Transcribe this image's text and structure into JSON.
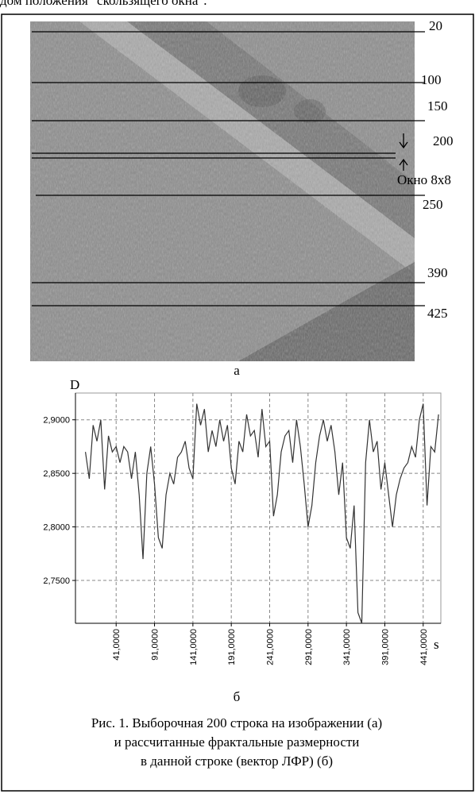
{
  "header_fragment": "дом положения \"скользящего окна\".",
  "figure_a": {
    "row_labels": [
      "20",
      "100",
      "150",
      "200",
      "250",
      "390",
      "425"
    ],
    "window_label": "Окно 8x8",
    "label": "а"
  },
  "chart_data": {
    "type": "line",
    "y_label": "D",
    "x_label": "s",
    "xlim": [
      -12,
      464
    ],
    "ylim": [
      2.71,
      2.925
    ],
    "xticks": [
      {
        "value": 41,
        "label": "41,0000"
      },
      {
        "value": 91,
        "label": "91,0000"
      },
      {
        "value": 141,
        "label": "141,0000"
      },
      {
        "value": 191,
        "label": "191,0000"
      },
      {
        "value": 241,
        "label": "241,0000"
      },
      {
        "value": 291,
        "label": "291,0000"
      },
      {
        "value": 341,
        "label": "341,0000"
      },
      {
        "value": 391,
        "label": "391,0000"
      },
      {
        "value": 441,
        "label": "441,0000"
      }
    ],
    "yticks": [
      {
        "value": 2.9,
        "label": "2,9000"
      },
      {
        "value": 2.85,
        "label": "2,8500"
      },
      {
        "value": 2.8,
        "label": "2,8000"
      },
      {
        "value": 2.75,
        "label": "2,7500"
      }
    ],
    "grid": true,
    "x": [
      1,
      6,
      11,
      16,
      21,
      26,
      31,
      36,
      41,
      46,
      51,
      56,
      61,
      66,
      71,
      76,
      81,
      86,
      91,
      96,
      101,
      106,
      111,
      116,
      121,
      126,
      131,
      136,
      141,
      146,
      151,
      156,
      161,
      166,
      171,
      176,
      181,
      186,
      191,
      196,
      201,
      206,
      211,
      216,
      221,
      226,
      231,
      236,
      241,
      246,
      251,
      256,
      261,
      266,
      271,
      276,
      281,
      286,
      291,
      296,
      301,
      306,
      311,
      316,
      321,
      326,
      331,
      336,
      341,
      346,
      351,
      356,
      361,
      366,
      371,
      376,
      381,
      386,
      391,
      396,
      401,
      406,
      411,
      416,
      421,
      426,
      431,
      436,
      441,
      446,
      451,
      456,
      461
    ],
    "series": [
      {
        "color": "#333333",
        "values": [
          2.87,
          2.845,
          2.895,
          2.88,
          2.9,
          2.835,
          2.885,
          2.87,
          2.875,
          2.86,
          2.875,
          2.87,
          2.845,
          2.87,
          2.83,
          2.77,
          2.85,
          2.875,
          2.84,
          2.79,
          2.78,
          2.83,
          2.85,
          2.84,
          2.865,
          2.87,
          2.88,
          2.855,
          2.845,
          2.915,
          2.895,
          2.91,
          2.87,
          2.89,
          2.875,
          2.9,
          2.88,
          2.895,
          2.855,
          2.84,
          2.88,
          2.87,
          2.905,
          2.885,
          2.89,
          2.865,
          2.91,
          2.875,
          2.88,
          2.81,
          2.83,
          2.87,
          2.885,
          2.89,
          2.86,
          2.9,
          2.875,
          2.84,
          2.8,
          2.82,
          2.86,
          2.885,
          2.9,
          2.88,
          2.895,
          2.87,
          2.83,
          2.86,
          2.79,
          2.78,
          2.82,
          2.72,
          2.71,
          2.86,
          2.9,
          2.87,
          2.88,
          2.835,
          2.86,
          2.83,
          2.8,
          2.83,
          2.845,
          2.855,
          2.86,
          2.875,
          2.865,
          2.9,
          2.915,
          2.82,
          2.875,
          2.87,
          2.905
        ]
      }
    ],
    "label": "б"
  },
  "caption": [
    "Рис. 1. Выборочная 200 строка на изображении (а)",
    "и рассчитанные фрактальные размерности",
    "в данной строке (вектор ЛФР) (б)"
  ]
}
